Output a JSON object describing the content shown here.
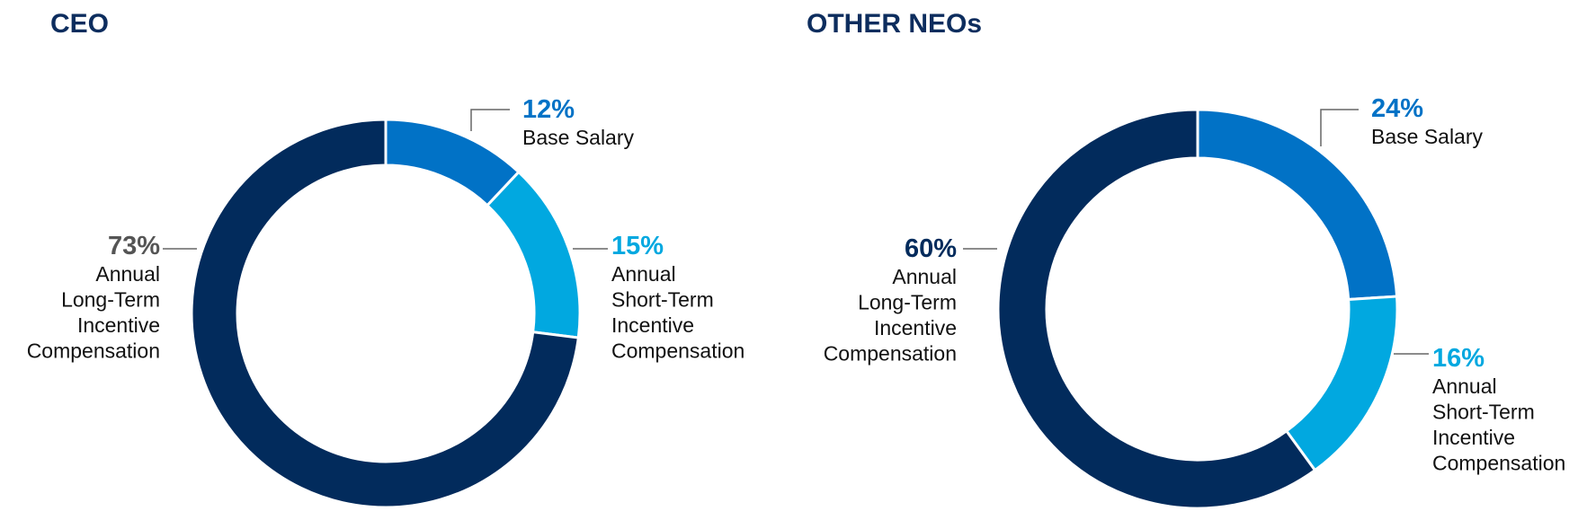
{
  "colors": {
    "title": "#0d2d5e",
    "base_salary": "#0172c6",
    "short_term": "#01a8e0",
    "long_term": "#022b5c",
    "leader_line": "#666666",
    "ceo_long_term_pct": "#555555"
  },
  "chart_data": [
    {
      "type": "pie",
      "style": "donut",
      "title": "CEO",
      "series": [
        {
          "name": "Base Salary",
          "pct_label": "12%",
          "label_lines": [
            "Base Salary"
          ],
          "value": 12,
          "color_key": "base_salary",
          "pct_color_key": "base_salary"
        },
        {
          "name": "Annual Short-Term Incentive Compensation",
          "pct_label": "15%",
          "label_lines": [
            "Annual",
            "Short-Term",
            "Incentive",
            "Compensation"
          ],
          "value": 15,
          "color_key": "short_term",
          "pct_color_key": "short_term"
        },
        {
          "name": "Annual Long-Term Incentive Compensation",
          "pct_label": "73%",
          "label_lines": [
            "Annual",
            "Long-Term",
            "Incentive",
            "Compensation"
          ],
          "value": 73,
          "color_key": "long_term",
          "pct_color_key": "ceo_long_term_pct"
        }
      ]
    },
    {
      "type": "pie",
      "style": "donut",
      "title": "OTHER NEOs",
      "series": [
        {
          "name": "Base Salary",
          "pct_label": "24%",
          "label_lines": [
            "Base Salary"
          ],
          "value": 24,
          "color_key": "base_salary",
          "pct_color_key": "base_salary"
        },
        {
          "name": "Annual Short-Term Incentive Compensation",
          "pct_label": "16%",
          "label_lines": [
            "Annual",
            "Short-Term",
            "Incentive",
            "Compensation"
          ],
          "value": 16,
          "color_key": "short_term",
          "pct_color_key": "short_term"
        },
        {
          "name": "Annual Long-Term Incentive Compensation",
          "pct_label": "60%",
          "label_lines": [
            "Annual",
            "Long-Term",
            "Incentive",
            "Compensation"
          ],
          "value": 60,
          "color_key": "long_term",
          "pct_color_key": "long_term"
        }
      ]
    }
  ]
}
